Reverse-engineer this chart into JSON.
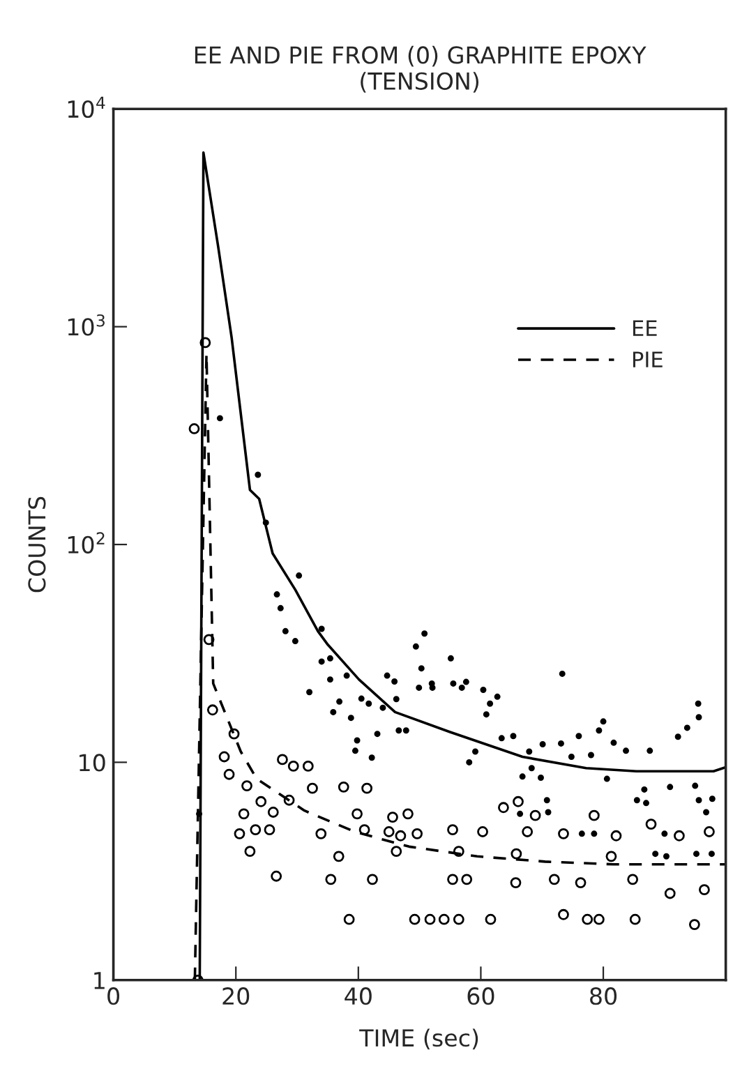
{
  "chart_data": {
    "type": "scatter",
    "title": "EE AND PIE FROM (0) GRAPHITE EPOXY\n(TENSION)",
    "xlabel": "TIME (sec)",
    "ylabel": "COUNTS",
    "xlim": [
      0,
      100
    ],
    "xticks": [
      0,
      20,
      40,
      60,
      80
    ],
    "ylim": [
      1,
      10000
    ],
    "log": "y",
    "yticks": [
      1,
      10,
      {
        "value": 100,
        "label": "10$^{2}$"
      },
      {
        "value": 1000,
        "label": "10$^{3}$"
      },
      {
        "value": 10000,
        "label": "10$^{4}$"
      }
    ],
    "grid": false,
    "legend": "top right",
    "series": [
      {
        "name": "EE",
        "type": "line",
        "line_style": "solid",
        "color": "#000000",
        "x": [
          14.1,
          14.7,
          17.1,
          19.3,
          22.3,
          23.8,
          26,
          29.7,
          33.4,
          34.9,
          40.1,
          46,
          54.9,
          66.8,
          77.2,
          85.4,
          98,
          100
        ],
        "values": [
          1,
          6300,
          2340,
          895,
          178,
          162,
          91,
          62,
          40,
          35,
          24,
          17,
          13.8,
          10.6,
          9.4,
          9.1,
          9.1,
          9.5
        ]
      },
      {
        "marker": "circle",
        "color": "#000000",
        "x": [
          14,
          17.4,
          23.6,
          24.9,
          26.7,
          27.3,
          28.1,
          29.7,
          30.3,
          32,
          34,
          34,
          35.4,
          35.4,
          35.9,
          36.9,
          38.1,
          38.8,
          39.5,
          39.8,
          40.5,
          41.7,
          42.2,
          43.1,
          44,
          44.7,
          45.9,
          46.2,
          46.6,
          47.8,
          49.4,
          49.9,
          50.3,
          50.8,
          52,
          52.1,
          55.1,
          55.5,
          56.9,
          57.6,
          58.1,
          59.1,
          60.4,
          60.9,
          61.5,
          62.7,
          63.4,
          65.3,
          66.4,
          66.8,
          67.9,
          68.3,
          69.8,
          70.1,
          70.8,
          71,
          73.1,
          73.3,
          74.8,
          76,
          76.5,
          78,
          78.5,
          79.3,
          80,
          80.6,
          81.7,
          83.7,
          85.5,
          86.7,
          87,
          87.6,
          88.5,
          90,
          90.3,
          90.9,
          92.2,
          93.7,
          95,
          95.2,
          95.5,
          95.6,
          95.6,
          96.8,
          97.7,
          97.8
        ],
        "values": [
          5.8,
          380,
          209,
          126,
          59,
          51,
          40,
          36,
          72,
          21,
          41,
          29,
          30,
          24,
          17,
          19,
          25,
          16,
          11.3,
          12.6,
          19.6,
          18.6,
          10.5,
          13.5,
          17.8,
          25,
          23.5,
          19.5,
          14,
          14,
          34,
          22,
          27,
          39,
          23,
          22,
          30,
          23,
          22,
          23.4,
          10,
          11.2,
          21.5,
          16.6,
          18.6,
          20,
          12.9,
          13.2,
          5.8,
          8.6,
          11.2,
          9.4,
          8.5,
          12.1,
          6.7,
          5.9,
          12.2,
          25.5,
          10.6,
          13.2,
          4.7,
          10.8,
          4.7,
          14,
          15.4,
          8.4,
          12.3,
          11.3,
          6.7,
          7.5,
          6.5,
          11.3,
          3.8,
          4.7,
          3.7,
          7.7,
          13.1,
          14.4,
          7.8,
          3.8,
          18.6,
          16.1,
          6.7,
          5.9,
          3.8,
          6.8
        ]
      },
      {
        "name": "PIE",
        "type": "line",
        "line_style": "dashed",
        "color": "#000000",
        "x": [
          13.3,
          15.2,
          16.3,
          20.8,
          23.4,
          31.2,
          39.4,
          48.3,
          59.4,
          70.5,
          81.7,
          96.5,
          100
        ],
        "values": [
          1,
          750,
          23,
          11.2,
          8.4,
          6.0,
          4.8,
          4.1,
          3.7,
          3.5,
          3.4,
          3.4,
          3.4
        ]
      },
      {
        "marker": "circle",
        "color": "#000000",
        "x": [
          13.2,
          13.8,
          15,
          15.6,
          16.2,
          18.1,
          18.9,
          19.7,
          20.6,
          21.3,
          21.8,
          22.3,
          23.2,
          24.1,
          25.5,
          26.1,
          26.6,
          27.6,
          28.7,
          29.4,
          31.8,
          32.5,
          33.9,
          35.5,
          36.8,
          37.6,
          38.5,
          39.8,
          41,
          41.4,
          42.3,
          45,
          45.6,
          46.2,
          46.9,
          48.1,
          49.2,
          49.6,
          51.7,
          54,
          55.4,
          55.4,
          56.4,
          56.4,
          57.7,
          60.3,
          61.6,
          63.7,
          65.7,
          65.8,
          66.1,
          67.6,
          68.9,
          72,
          73.5,
          73.5,
          76.3,
          77.4,
          78.5,
          79.3,
          81.3,
          82.1,
          84.8,
          85.2,
          87.8,
          90.9,
          92.4,
          94.9,
          96.5,
          97.3
        ],
        "values": [
          340,
          1,
          845,
          36.6,
          17.4,
          10.6,
          8.8,
          13.5,
          4.7,
          5.8,
          7.8,
          3.9,
          4.9,
          6.6,
          4.9,
          5.9,
          3.0,
          10.3,
          6.7,
          9.6,
          9.6,
          7.6,
          4.7,
          2.9,
          3.7,
          7.7,
          1.9,
          5.8,
          4.9,
          7.6,
          2.9,
          4.8,
          5.6,
          3.9,
          4.6,
          5.8,
          1.9,
          4.7,
          1.9,
          1.9,
          4.9,
          2.9,
          3.9,
          1.9,
          2.9,
          4.8,
          1.9,
          6.2,
          2.8,
          3.8,
          6.6,
          4.8,
          5.7,
          2.9,
          4.7,
          2.0,
          2.8,
          1.9,
          5.7,
          1.9,
          3.7,
          4.6,
          2.9,
          1.9,
          5.2,
          2.5,
          4.6,
          1.8,
          2.6,
          4.8
        ]
      }
    ]
  }
}
